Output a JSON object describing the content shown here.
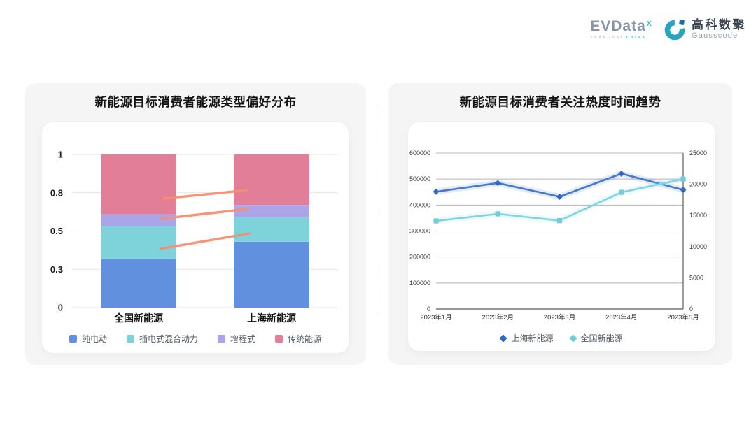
{
  "header": {
    "evdata": {
      "brand": "EVData",
      "sup_mark": "x",
      "subtitle_left": "SHANGHAI ",
      "subtitle_right": "CHINA"
    },
    "gausscode": {
      "name_cn": "高科数聚",
      "name_en": "Gausscode"
    }
  },
  "colors": {
    "card_bg": "#f5f5f6",
    "panel_bg": "#ffffff",
    "bar_grid": "#e5e5e7",
    "line_grid": "#b5b5b5",
    "line_axis": "#5a5a5a",
    "connector": "#f78f70",
    "evdata_gray": "#8694a6",
    "evdata_cyan": "#3fc0dd",
    "gausscode_teal": "#29a3c0",
    "gausscode_navy": "#1e6f9f"
  },
  "chart_data": [
    {
      "type": "bar",
      "stacked": true,
      "title": "新能源目标消费者能源类型偏好分布",
      "categories": [
        "全国新能源",
        "上海新能源"
      ],
      "series": [
        {
          "name": "纯电动",
          "color": "#6191de",
          "values": [
            0.32,
            0.43
          ]
        },
        {
          "name": "插电式混合动力",
          "color": "#7ed3da",
          "values": [
            0.21,
            0.16
          ]
        },
        {
          "name": "增程式",
          "color": "#aba4e9",
          "values": [
            0.08,
            0.08
          ]
        },
        {
          "name": "传统能源",
          "color": "#e27e97",
          "values": [
            0.39,
            0.33
          ]
        }
      ],
      "ylim": [
        0,
        1
      ],
      "yticks": [
        {
          "v": 0,
          "label": "0"
        },
        {
          "v": 0.25,
          "label": "0.3"
        },
        {
          "v": 0.5,
          "label": "0.5"
        },
        {
          "v": 0.75,
          "label": "0.8"
        },
        {
          "v": 1,
          "label": "1"
        }
      ],
      "grid": true,
      "legend_position": "bottom",
      "connector_color": "#f78f70",
      "connectors": [
        {
          "x1": 0.345,
          "y1": 0.712,
          "x2": 0.658,
          "y2": 0.767
        },
        {
          "x1": 0.337,
          "y1": 0.58,
          "x2": 0.661,
          "y2": 0.644
        },
        {
          "x1": 0.332,
          "y1": 0.384,
          "x2": 0.666,
          "y2": 0.484
        }
      ]
    },
    {
      "type": "line",
      "title": "新能源目标消费者关注热度时间趋势",
      "categories": [
        "2023年1月",
        "2023年2月",
        "2023年3月",
        "2023年4月",
        "2023年5月"
      ],
      "series": [
        {
          "name": "上海新能源",
          "color": "#4478d0",
          "marker_color": "#3566be",
          "marker": "diamond",
          "axis": "right",
          "values": [
            18800,
            20200,
            18000,
            21700,
            19100
          ]
        },
        {
          "name": "全国新能源",
          "color": "#7fd4df",
          "marker_color": "#72cdd9",
          "marker": "square",
          "axis": "left",
          "values": [
            339000,
            366000,
            340000,
            449000,
            500000
          ]
        }
      ],
      "left_axis": {
        "min": 0,
        "max": 600000,
        "ticks": [
          0,
          100000,
          200000,
          300000,
          400000,
          500000,
          600000
        ]
      },
      "right_axis": {
        "min": 0,
        "max": 25000,
        "ticks": [
          0,
          5000,
          10000,
          15000,
          20000,
          25000
        ]
      },
      "grid": true,
      "legend_position": "bottom"
    }
  ]
}
